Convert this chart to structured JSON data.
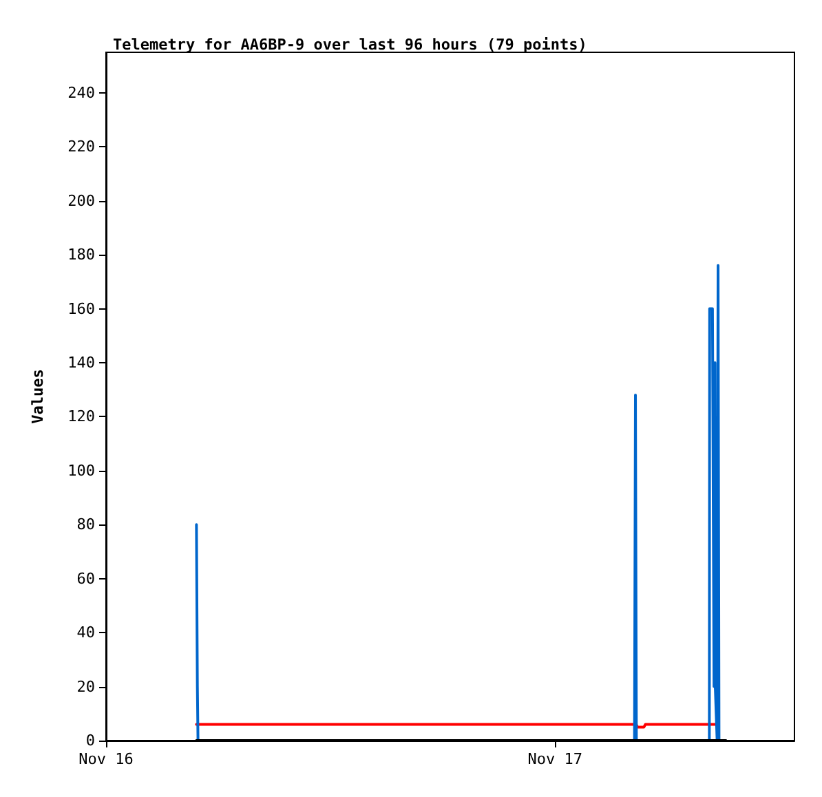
{
  "chart_data": {
    "type": "line",
    "title": "Telemetry for AA6BP-9 over last 96 hours (79 points)",
    "ylabel": "Values",
    "xlim": [
      "--11-16T00:00",
      "--11-17T12:48"
    ],
    "xticks": [
      {
        "value": "--11-16T00:00",
        "label": "Nov 16"
      },
      {
        "value": "--11-17T00:00",
        "label": "Nov 17"
      }
    ],
    "ylim": [
      0,
      255
    ],
    "yticks": [
      0,
      20,
      40,
      60,
      80,
      100,
      120,
      140,
      160,
      180,
      200,
      220,
      240
    ],
    "grid": false,
    "marker": "none",
    "line_style": "solid",
    "series": [
      {
        "color": "#000000",
        "x": [
          "--11-16T04:50",
          "--11-17T09:08"
        ],
        "values": [
          0,
          0
        ]
      },
      {
        "color": "#ff0000",
        "x": [
          "--11-16T04:50",
          "--11-17T04:20",
          "--11-17T04:25",
          "--11-17T04:45",
          "--11-17T04:50",
          "--11-17T08:40"
        ],
        "values": [
          6,
          6,
          5,
          5,
          6,
          6
        ]
      },
      {
        "color": "#0066cc",
        "x": [
          "--11-16T04:50",
          "--11-16T04:51",
          "--11-16T04:52",
          "--11-16T04:53",
          "--11-16T04:54",
          "--11-16T04:55",
          "--11-17T04:15",
          "--11-17T04:18",
          "--11-17T04:21",
          "--11-17T08:15",
          "--11-17T08:16",
          "--11-17T08:25",
          "--11-17T08:30",
          "--11-17T08:31",
          "--11-17T08:32",
          "--11-17T08:33",
          "--11-17T08:34",
          "--11-17T08:40",
          "--11-17T08:43",
          "--11-17T08:46"
        ],
        "values": [
          80,
          60,
          60,
          20,
          20,
          0,
          0,
          128,
          0,
          0,
          160,
          160,
          20,
          100,
          60,
          140,
          20,
          0,
          176,
          0
        ]
      }
    ]
  }
}
